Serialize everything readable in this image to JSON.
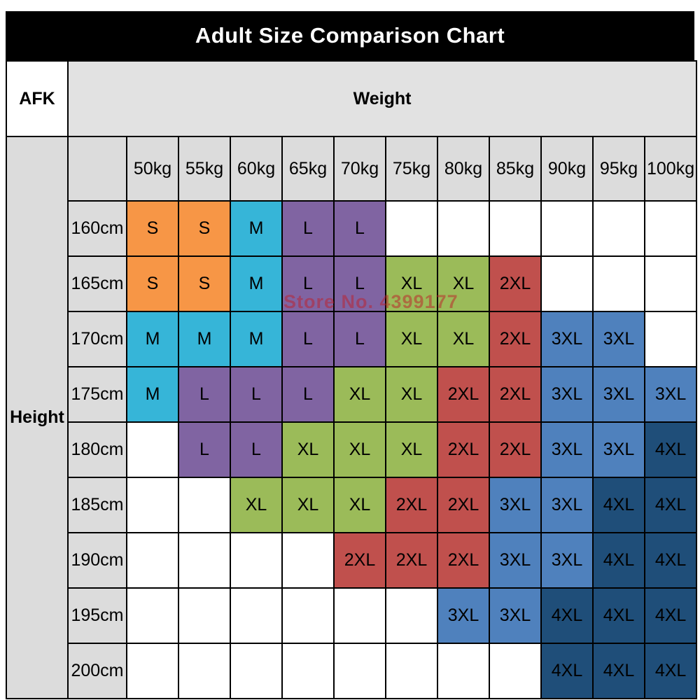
{
  "title": "Adult Size Comparison Chart",
  "watermark": "Store No. 4399177",
  "table": {
    "corner_label": "AFK",
    "weight_header": "Weight",
    "height_header": "Height"
  },
  "chart_data": {
    "type": "table",
    "title": "Adult Size Comparison Chart",
    "columns_header": "Weight",
    "rows_header": "Height",
    "columns": [
      "50kg",
      "55kg",
      "60kg",
      "65kg",
      "70kg",
      "75kg",
      "80kg",
      "85kg",
      "90kg",
      "95kg",
      "100kg"
    ],
    "rows": [
      "160cm",
      "165cm",
      "170cm",
      "175cm",
      "180cm",
      "185cm",
      "190cm",
      "195cm",
      "200cm"
    ],
    "cells": [
      [
        "S",
        "S",
        "M",
        "L",
        "L",
        "",
        "",
        "",
        "",
        "",
        ""
      ],
      [
        "S",
        "S",
        "M",
        "L",
        "L",
        "XL",
        "XL",
        "2XL",
        "",
        "",
        ""
      ],
      [
        "M",
        "M",
        "M",
        "L",
        "L",
        "XL",
        "XL",
        "2XL",
        "3XL",
        "3XL",
        ""
      ],
      [
        "M",
        "L",
        "L",
        "L",
        "XL",
        "XL",
        "2XL",
        "2XL",
        "3XL",
        "3XL",
        "3XL"
      ],
      [
        "",
        "L",
        "L",
        "XL",
        "XL",
        "XL",
        "2XL",
        "2XL",
        "3XL",
        "3XL",
        "4XL"
      ],
      [
        "",
        "",
        "XL",
        "XL",
        "XL",
        "2XL",
        "2XL",
        "3XL",
        "3XL",
        "4XL",
        "4XL"
      ],
      [
        "",
        "",
        "",
        "",
        "2XL",
        "2XL",
        "2XL",
        "3XL",
        "3XL",
        "4XL",
        "4XL"
      ],
      [
        "",
        "",
        "",
        "",
        "",
        "",
        "3XL",
        "3XL",
        "4XL",
        "4XL",
        "4XL"
      ],
      [
        "",
        "",
        "",
        "",
        "",
        "",
        "",
        "",
        "4XL",
        "4XL",
        "4XL"
      ]
    ],
    "cell_colors": {
      "S": "#F79646",
      "M": "#36B5D8",
      "L": "#8064A2",
      "XL": "#9BBB59",
      "2XL": "#C0504D",
      "3XL": "#4F81BD",
      "4XL": "#1F4E79"
    },
    "empty_cell_color": "#FFFFFF",
    "header_bg": "#DCDCDC",
    "grid": "on",
    "legend_position": "none"
  }
}
